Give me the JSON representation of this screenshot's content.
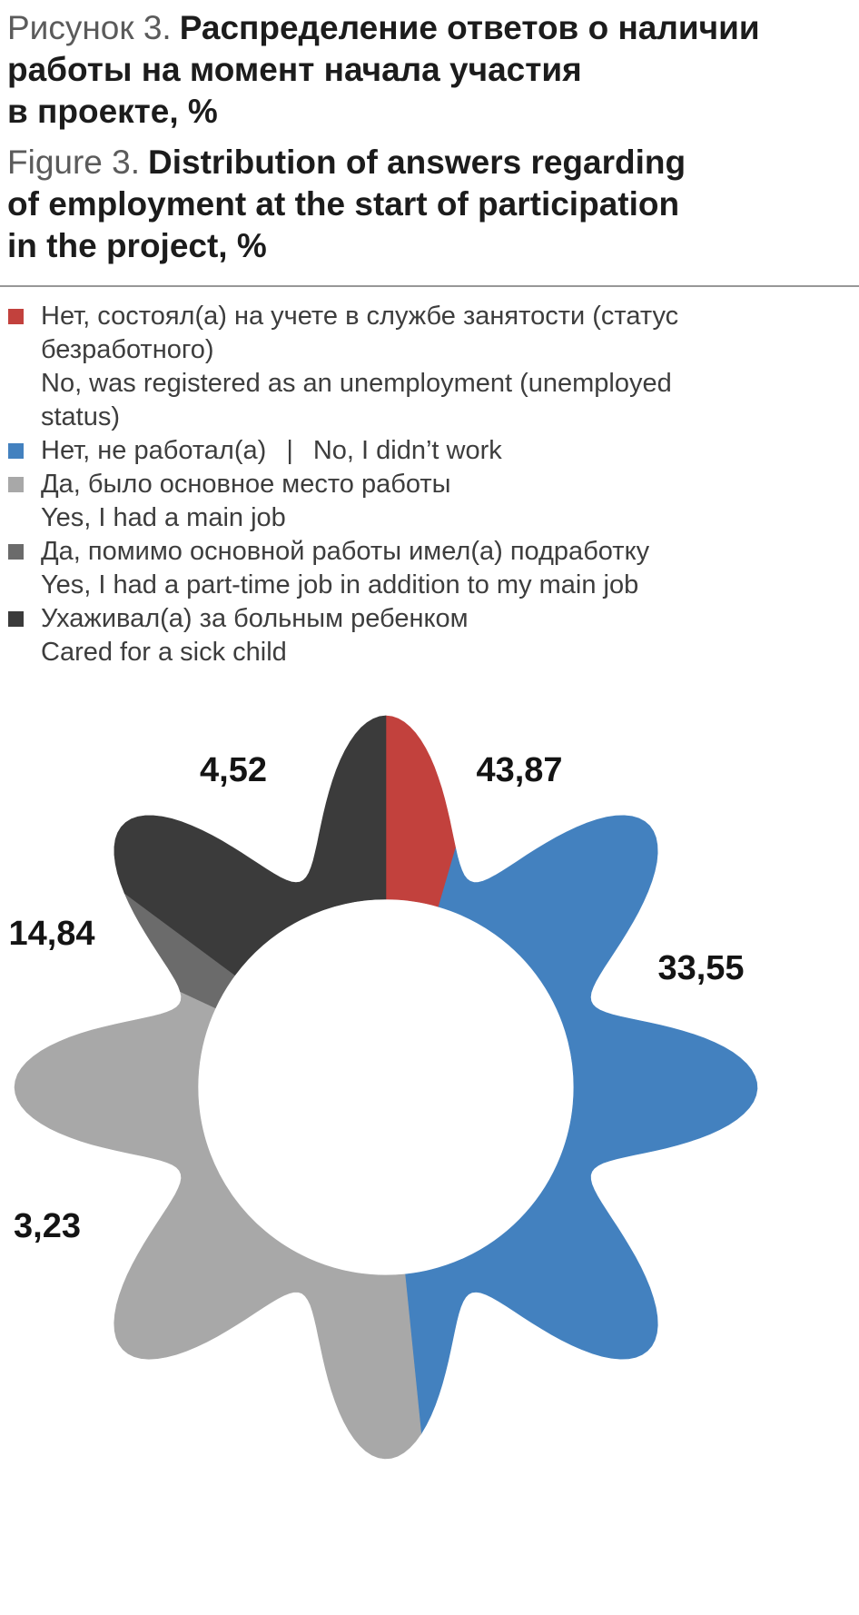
{
  "figure": {
    "title_ru": {
      "prefix": "Рисунок 3.",
      "main": "Распределение ответов о наличии\nработы на момент начала участия\nв проекте, %"
    },
    "title_en": {
      "prefix": "Figure 3.",
      "main": "Distribution of answers regarding\nof employment at the start of participation\nin the project, %"
    }
  },
  "legend": {
    "items": [
      {
        "color": "#c2413d",
        "ru": "Нет, состоял(а) на учете в службе занятости (статус\nбезработного)",
        "en": "No, was registered as an unemployment (unemployed\nstatus)"
      },
      {
        "color": "#4381bf",
        "ru": "Нет, не работал(а)",
        "sep": "|",
        "en": "No, I didn’t work"
      },
      {
        "color": "#a8a8a8",
        "ru": "Да, было основное место работы",
        "en": "Yes, I had a main job"
      },
      {
        "color": "#6b6b6b",
        "ru": "Да, помимо основной работы имел(а) подработку",
        "en": "Yes, I had a part-time job in addition to my main job"
      },
      {
        "color": "#3b3b3b",
        "ru": "Ухаживал(а) за больным ребенком",
        "en": "Cared for a sick child"
      }
    ]
  },
  "chart_data": {
    "type": "pie",
    "variant": "flower-petal donut (8 petals, white center hole)",
    "unit": "%",
    "direction": "clockwise",
    "start_angle_deg": 0,
    "legend_position": "top",
    "slices": [
      {
        "label_ru": "Нет, состоял(а) на учете в службе занятости (статус безработного)",
        "label_en": "No, was registered as an unemployment (unemployed status)",
        "value": 4.52,
        "display": "4,52",
        "color": "#c2413d"
      },
      {
        "label_ru": "Нет, не работал(а)",
        "label_en": "No, I didn’t work",
        "value": 43.87,
        "display": "43,87",
        "color": "#4381bf"
      },
      {
        "label_ru": "Да, было основное место работы",
        "label_en": "Yes, I had a main job",
        "value": 33.55,
        "display": "33,55",
        "color": "#a8a8a8"
      },
      {
        "label_ru": "Да, помимо основной работы имел(а) подработку",
        "label_en": "Yes, I had a part-time job in addition to my main job",
        "value": 3.23,
        "display": "3,23",
        "color": "#6b6b6b"
      },
      {
        "label_ru": "Ухаживал(а) за больным ребенком",
        "label_en": "Cared for a sick child",
        "value": 14.84,
        "display": "14,84",
        "color": "#3b3b3b"
      }
    ]
  }
}
